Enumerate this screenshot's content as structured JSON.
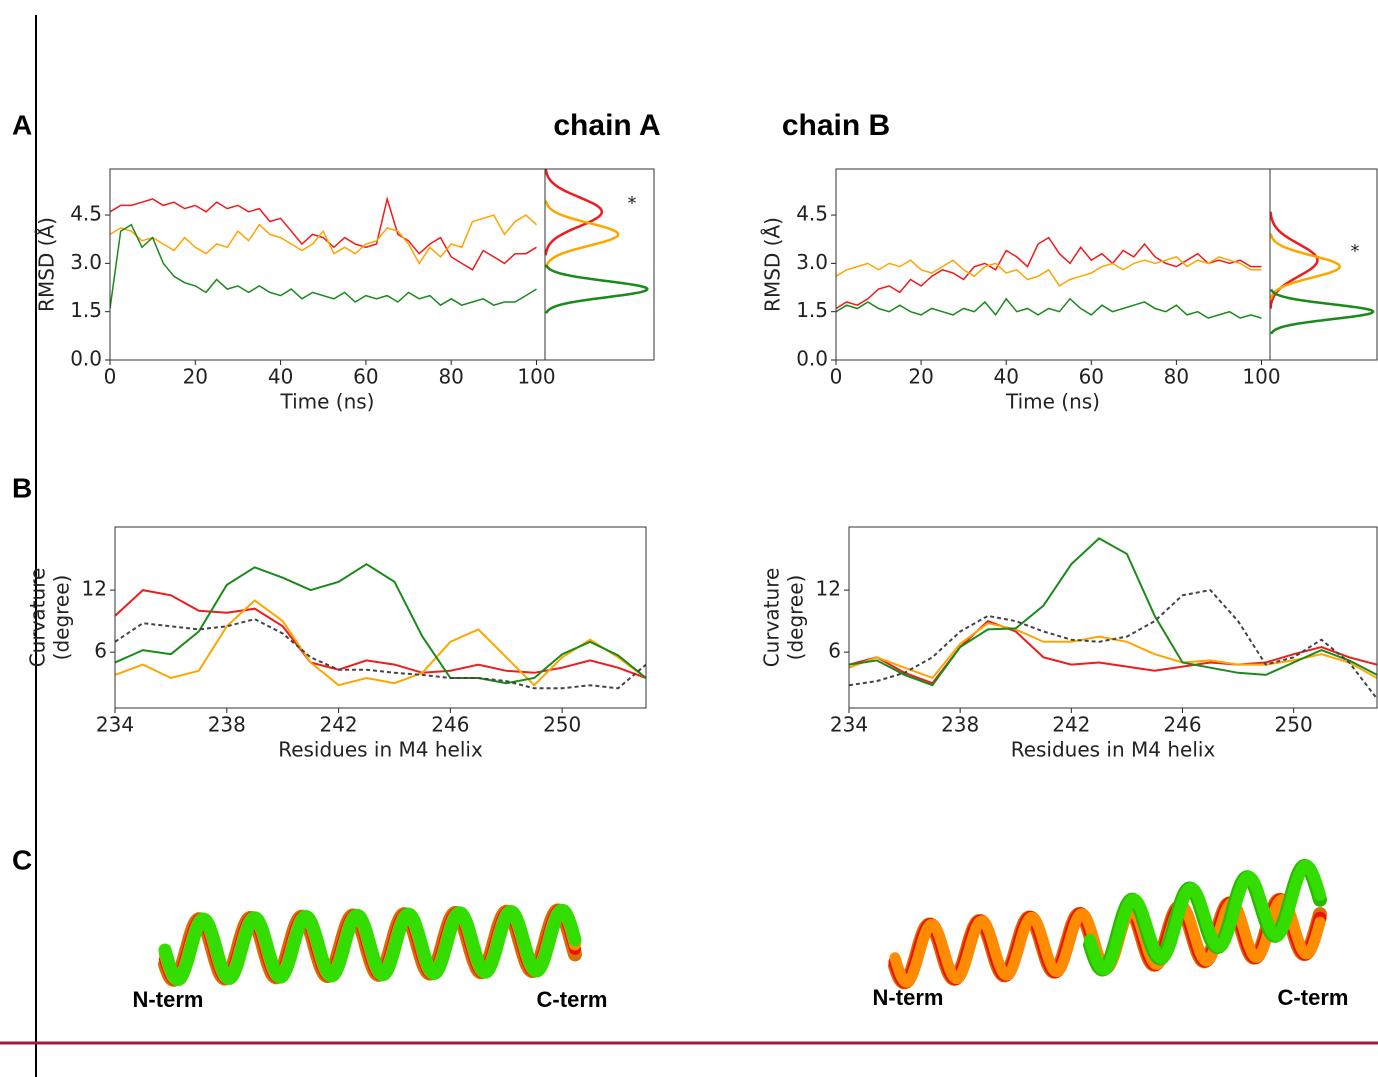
{
  "panels": [
    "A",
    "B",
    "C"
  ],
  "columns": [
    {
      "title": "chain A",
      "n_term": "N-term",
      "c_term": "C-term"
    },
    {
      "title": "chain B",
      "n_term": "N-term",
      "c_term": "C-term"
    }
  ],
  "chart_data": [
    {
      "type": "line",
      "xlabel": "Time (ns)",
      "ylabel": [
        "RMSD (Å)"
      ],
      "annotation": "*",
      "xlim": [
        0,
        102
      ],
      "ylim": [
        0,
        5.93
      ],
      "xticks": [
        0,
        20,
        40,
        60,
        80,
        100
      ],
      "yticks": [
        {
          "value": 0,
          "label": "0.0"
        },
        1.5,
        {
          "value": 3,
          "label": "3.0"
        },
        4.5
      ],
      "density_xlim": [
        0,
        1.7
      ],
      "x": [
        0,
        2.5,
        5,
        7.5,
        10,
        12.5,
        15,
        17.5,
        20,
        22.5,
        25,
        27.5,
        30,
        32.5,
        35,
        37.5,
        40,
        42.5,
        45,
        47.5,
        50,
        52.5,
        55,
        57.5,
        60,
        62.5,
        65,
        67.5,
        70,
        72.5,
        75,
        77.5,
        80,
        82.5,
        85,
        87.5,
        90,
        92.5,
        95,
        97.5,
        100
      ],
      "series": [
        {
          "color": "#ee1c1c",
          "dist": {
            "mean": 4.6,
            "sd": 0.45
          },
          "values": [
            4.6,
            4.8,
            4.8,
            4.9,
            5.0,
            4.8,
            4.9,
            4.7,
            4.8,
            4.6,
            4.9,
            4.7,
            4.8,
            4.6,
            4.7,
            4.3,
            4.4,
            4.0,
            3.6,
            3.9,
            3.8,
            3.5,
            3.8,
            3.6,
            3.5,
            3.6,
            5.0,
            3.9,
            3.7,
            3.3,
            3.6,
            3.8,
            3.2,
            3.0,
            2.8,
            3.4,
            3.2,
            3.0,
            3.3,
            3.3,
            3.5
          ]
        },
        {
          "color": "#ffa500",
          "dist": {
            "mean": 3.9,
            "sd": 0.35
          },
          "values": [
            3.9,
            4.1,
            4.0,
            3.7,
            3.8,
            3.6,
            3.4,
            3.8,
            3.5,
            3.3,
            3.6,
            3.5,
            4.0,
            3.7,
            4.2,
            3.9,
            3.8,
            3.6,
            3.4,
            3.6,
            4.0,
            3.3,
            3.5,
            3.3,
            3.6,
            3.7,
            4.1,
            4.0,
            3.6,
            3.0,
            3.5,
            3.2,
            3.6,
            3.5,
            4.3,
            4.4,
            4.5,
            3.9,
            4.3,
            4.5,
            4.2
          ]
        },
        {
          "color": "#1a8a1a",
          "dist": {
            "mean": 2.2,
            "sd": 0.25
          },
          "values": [
            1.6,
            4.0,
            4.2,
            3.5,
            3.8,
            3.0,
            2.6,
            2.4,
            2.3,
            2.1,
            2.5,
            2.2,
            2.3,
            2.1,
            2.3,
            2.1,
            2.0,
            2.2,
            1.9,
            2.1,
            2.0,
            1.9,
            2.1,
            1.8,
            2.0,
            1.9,
            2.0,
            1.8,
            2.1,
            1.9,
            2.0,
            1.7,
            1.9,
            1.7,
            1.8,
            1.9,
            1.7,
            1.8,
            1.8,
            2.0,
            2.2
          ]
        }
      ]
    },
    {
      "type": "line",
      "xlabel": "Time (ns)",
      "ylabel": [
        "RMSD (Å)"
      ],
      "annotation": "*",
      "xlim": [
        0,
        102
      ],
      "ylim": [
        0,
        5.93
      ],
      "xticks": [
        0,
        20,
        40,
        60,
        80,
        100
      ],
      "yticks": [
        {
          "value": 0,
          "label": "0.0"
        },
        1.5,
        {
          "value": 3,
          "label": "3.0"
        },
        4.5
      ],
      "density_xlim": [
        0,
        1.8
      ],
      "x": [
        0,
        2.5,
        5,
        7.5,
        10,
        12.5,
        15,
        17.5,
        20,
        22.5,
        25,
        27.5,
        30,
        32.5,
        35,
        37.5,
        40,
        42.5,
        45,
        47.5,
        50,
        52.5,
        55,
        57.5,
        60,
        62.5,
        65,
        67.5,
        70,
        72.5,
        75,
        77.5,
        80,
        82.5,
        85,
        87.5,
        90,
        92.5,
        95,
        97.5,
        100
      ],
      "series": [
        {
          "color": "#ee1c1c",
          "dist": {
            "mean": 3.1,
            "sd": 0.5
          },
          "values": [
            1.6,
            1.8,
            1.7,
            1.9,
            2.2,
            2.3,
            2.1,
            2.5,
            2.3,
            2.6,
            2.8,
            2.7,
            2.5,
            2.9,
            3.0,
            2.8,
            3.4,
            3.2,
            2.9,
            3.6,
            3.8,
            3.3,
            3.0,
            3.5,
            3.1,
            3.3,
            3.0,
            3.4,
            3.2,
            3.6,
            3.2,
            3.0,
            2.9,
            3.1,
            3.3,
            3.0,
            3.1,
            3.0,
            3.1,
            2.9,
            2.9
          ]
        },
        {
          "color": "#ffa500",
          "dist": {
            "mean": 2.9,
            "sd": 0.34
          },
          "values": [
            2.6,
            2.8,
            2.9,
            3.0,
            2.8,
            3.0,
            2.9,
            3.1,
            2.8,
            2.7,
            2.9,
            3.1,
            2.8,
            2.6,
            2.9,
            3.0,
            2.7,
            2.8,
            2.5,
            2.6,
            2.8,
            2.3,
            2.5,
            2.6,
            2.7,
            2.9,
            3.0,
            2.8,
            3.0,
            3.1,
            3.0,
            3.1,
            3.2,
            2.9,
            3.1,
            3.0,
            3.2,
            3.1,
            3.0,
            2.8,
            2.8
          ]
        },
        {
          "color": "#1a8a1a",
          "dist": {
            "mean": 1.5,
            "sd": 0.23
          },
          "values": [
            1.5,
            1.7,
            1.6,
            1.8,
            1.6,
            1.5,
            1.7,
            1.5,
            1.4,
            1.6,
            1.5,
            1.4,
            1.6,
            1.5,
            1.8,
            1.4,
            1.9,
            1.5,
            1.6,
            1.4,
            1.6,
            1.5,
            1.9,
            1.6,
            1.4,
            1.7,
            1.5,
            1.6,
            1.7,
            1.8,
            1.6,
            1.5,
            1.7,
            1.4,
            1.5,
            1.3,
            1.4,
            1.5,
            1.3,
            1.4,
            1.3
          ]
        }
      ]
    },
    {
      "type": "line",
      "xlabel": "Residues in M4 helix",
      "ylabel": [
        "Curvature",
        "(degree)"
      ],
      "xlim": [
        234,
        253
      ],
      "ylim": [
        0.6,
        18.1
      ],
      "xticks": [
        234,
        238,
        242,
        246,
        250
      ],
      "yticks": [
        6,
        12
      ],
      "x": [
        234,
        235,
        236,
        237,
        238,
        239,
        240,
        241,
        242,
        243,
        244,
        245,
        246,
        247,
        248,
        249,
        250,
        251,
        252,
        253
      ],
      "series": [
        {
          "color": "#ee1c1c",
          "values": [
            9.5,
            12,
            11.5,
            10,
            9.8,
            10.2,
            8.5,
            5,
            4.3,
            5.2,
            4.8,
            4,
            4.2,
            4.8,
            4.2,
            4,
            4.5,
            5.2,
            4.5,
            3.5
          ]
        },
        {
          "color": "#ffa500",
          "values": [
            3.8,
            4.8,
            3.5,
            4.2,
            8.5,
            11,
            9,
            5,
            2.8,
            3.5,
            3,
            4,
            7,
            8.2,
            5.5,
            2.8,
            5.5,
            7.2,
            5.5,
            3.5
          ]
        },
        {
          "color": "#1a8a1a",
          "values": [
            5,
            6.2,
            5.8,
            8,
            12.5,
            14.2,
            13.2,
            12,
            12.8,
            14.5,
            12.8,
            7.5,
            3.5,
            3.5,
            3,
            3.5,
            5.8,
            7,
            5.7,
            3.5
          ]
        },
        {
          "color": "#444444",
          "dash": true,
          "values": [
            7,
            8.8,
            8.5,
            8.2,
            8.5,
            9.2,
            7.8,
            5.5,
            4.3,
            4.3,
            4,
            3.8,
            3.5,
            3.5,
            3.2,
            2.5,
            2.5,
            2.8,
            2.5,
            4.8
          ]
        }
      ]
    },
    {
      "type": "line",
      "xlabel": "Residues in M4 helix",
      "ylabel": [
        "Curvature",
        "(degree)"
      ],
      "xlim": [
        234,
        253
      ],
      "ylim": [
        0.6,
        18.1
      ],
      "xticks": [
        234,
        238,
        242,
        246,
        250
      ],
      "yticks": [
        6,
        12
      ],
      "x": [
        234,
        235,
        236,
        237,
        238,
        239,
        240,
        241,
        242,
        243,
        244,
        245,
        246,
        247,
        248,
        249,
        250,
        251,
        252,
        253
      ],
      "series": [
        {
          "color": "#ee1c1c",
          "values": [
            4.8,
            5.5,
            4,
            3,
            6.5,
            9,
            8,
            5.5,
            4.8,
            5,
            4.6,
            4.2,
            4.6,
            5,
            4.8,
            5,
            5.8,
            6.5,
            5.5,
            4.8
          ]
        },
        {
          "color": "#ffa500",
          "values": [
            4.5,
            5.5,
            4.5,
            3.5,
            6.8,
            8.8,
            8.2,
            7,
            7,
            7.5,
            7,
            5.8,
            5,
            5.2,
            4.8,
            4.8,
            5.2,
            5.8,
            5,
            3.5
          ]
        },
        {
          "color": "#1a8a1a",
          "values": [
            4.8,
            5.2,
            3.8,
            2.8,
            6.5,
            8.2,
            8.3,
            10.5,
            14.5,
            17,
            15.5,
            9.5,
            5,
            4.5,
            4,
            3.8,
            5,
            6.2,
            5.2,
            3.8
          ]
        },
        {
          "color": "#444444",
          "dash": true,
          "values": [
            2.8,
            3.2,
            4,
            5.5,
            8,
            9.5,
            9,
            8,
            7.2,
            7,
            7.5,
            9,
            11.5,
            12,
            9,
            4.8,
            5.5,
            7.2,
            5,
            1.5
          ]
        }
      ]
    }
  ]
}
